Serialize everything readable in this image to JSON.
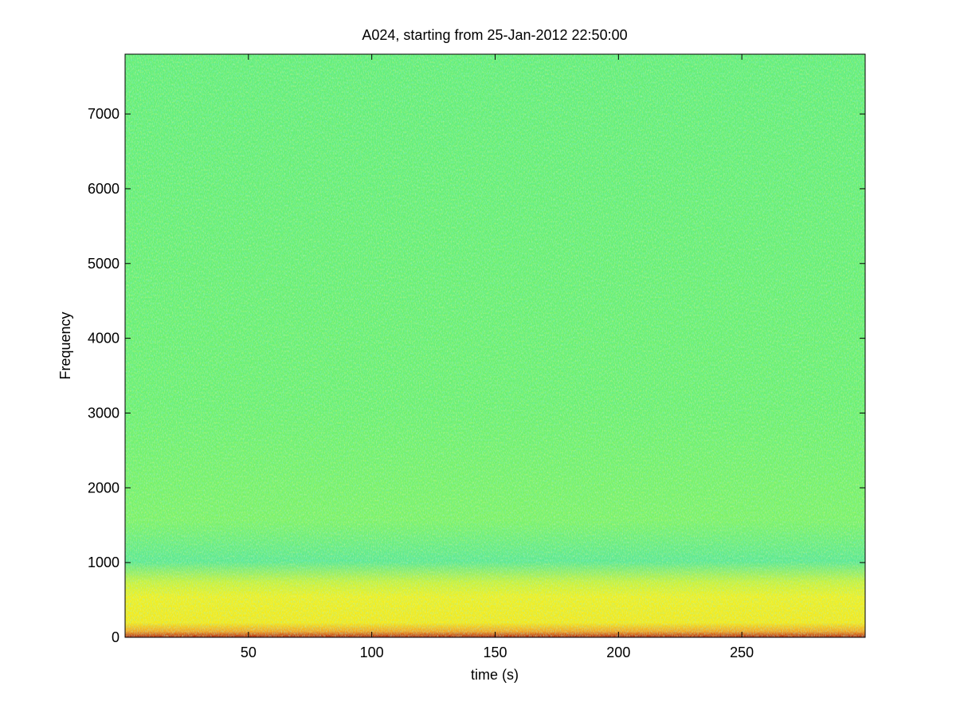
{
  "chart_data": {
    "type": "spectrogram",
    "title": "A024, starting from 25-Jan-2012 22:50:00",
    "xlabel": "time (s)",
    "ylabel": "Frequency",
    "xlim": [
      0,
      300
    ],
    "xticks": [
      50,
      100,
      150,
      200,
      250
    ],
    "ylim": [
      0,
      7800
    ],
    "yticks": [
      0,
      1000,
      2000,
      3000,
      4000,
      5000,
      6000,
      7000
    ]
  }
}
